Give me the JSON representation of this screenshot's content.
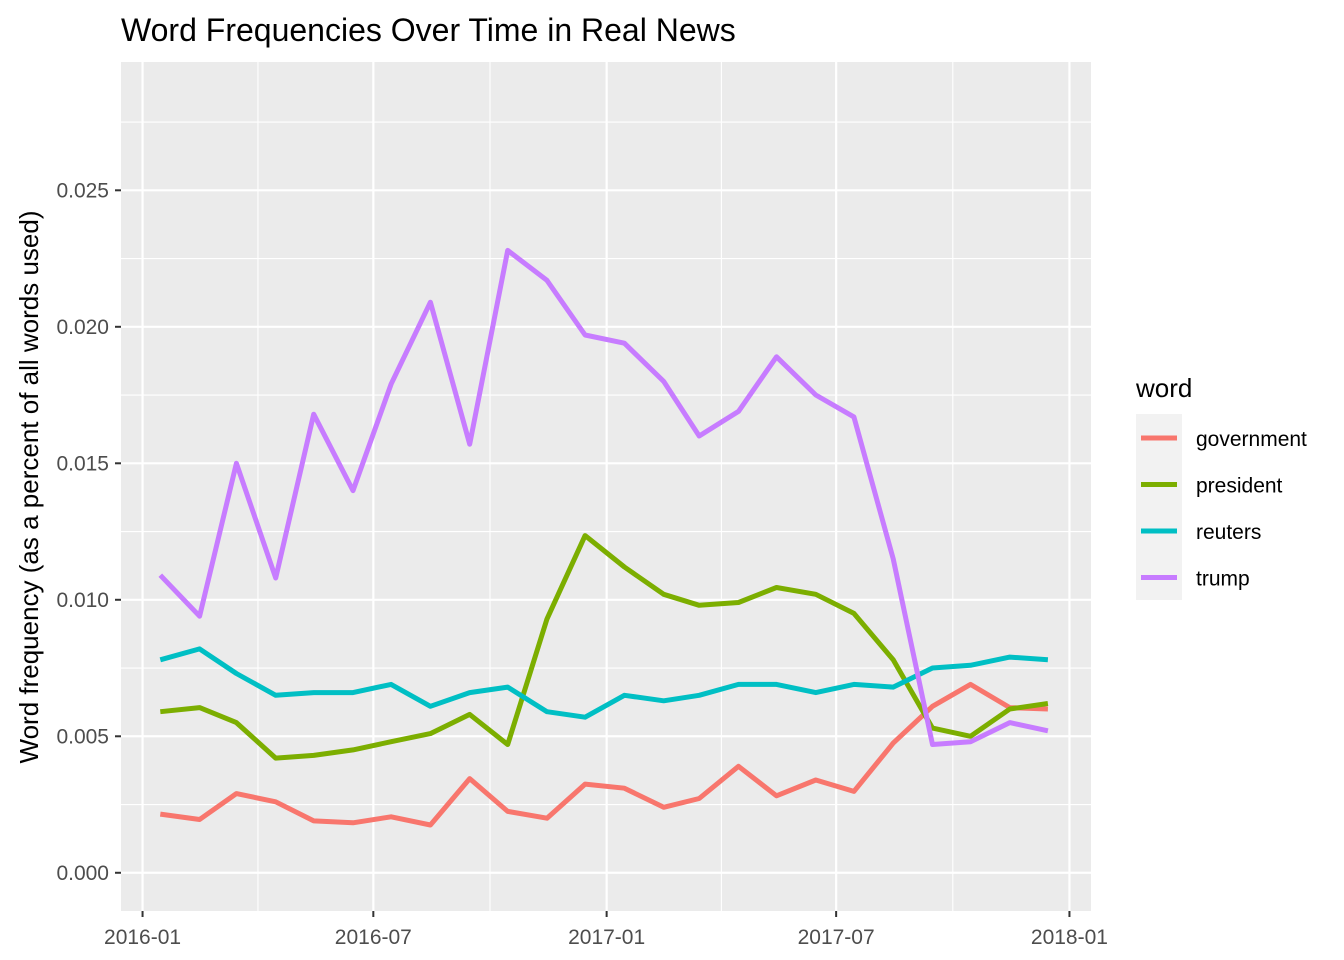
{
  "chart_data": {
    "type": "line",
    "title": "Word Frequencies Over Time in Real News",
    "xlabel": "",
    "ylabel": "Word frequency (as a percent of all words used)",
    "x": [
      "2016-01",
      "2016-02",
      "2016-03",
      "2016-04",
      "2016-05",
      "2016-06",
      "2016-07",
      "2016-08",
      "2016-09",
      "2016-10",
      "2016-11",
      "2016-12",
      "2017-01",
      "2017-02",
      "2017-03",
      "2017-04",
      "2017-05",
      "2017-06",
      "2017-07",
      "2017-08",
      "2017-09",
      "2017-10",
      "2017-11",
      "2017-12"
    ],
    "xlim": [
      "2015-12-15",
      "2018-01-18"
    ],
    "ylim": [
      -0.0014,
      0.0297
    ],
    "x_ticks": [
      "2016-01",
      "2016-07",
      "2017-01",
      "2017-07",
      "2018-01"
    ],
    "x_tick_dates": [
      "2016-01-01",
      "2016-07-01",
      "2017-01-01",
      "2017-07-01",
      "2018-01-01"
    ],
    "y_ticks": [
      "0.000",
      "0.005",
      "0.010",
      "0.015",
      "0.020",
      "0.025"
    ],
    "y_tick_values": [
      0.0,
      0.005,
      0.01,
      0.015,
      0.02,
      0.025
    ],
    "grid": true,
    "legend": {
      "title": "word",
      "position": "right"
    },
    "series": [
      {
        "name": "government",
        "color": "#F8766D",
        "values": [
          0.00215,
          0.00195,
          0.0029,
          0.0026,
          0.0019,
          0.00183,
          0.00205,
          0.00175,
          0.00345,
          0.00225,
          0.002,
          0.00325,
          0.0031,
          0.0024,
          0.00272,
          0.0039,
          0.00282,
          0.0034,
          0.00298,
          0.00475,
          0.0061,
          0.0069,
          0.00605,
          0.006
        ]
      },
      {
        "name": "president",
        "color": "#7CAE00",
        "values": [
          0.0059,
          0.00605,
          0.0055,
          0.0042,
          0.0043,
          0.0045,
          0.0048,
          0.0051,
          0.0058,
          0.0047,
          0.0093,
          0.01235,
          0.0112,
          0.0102,
          0.0098,
          0.0099,
          0.01045,
          0.0102,
          0.0095,
          0.0078,
          0.0053,
          0.005,
          0.006,
          0.0062
        ]
      },
      {
        "name": "reuters",
        "color": "#00BFC4",
        "values": [
          0.0078,
          0.0082,
          0.0073,
          0.0065,
          0.0066,
          0.0066,
          0.0069,
          0.0061,
          0.0066,
          0.0068,
          0.0059,
          0.0057,
          0.0065,
          0.0063,
          0.0065,
          0.0069,
          0.0069,
          0.0066,
          0.0069,
          0.0068,
          0.0075,
          0.0076,
          0.0079,
          0.0078
        ]
      },
      {
        "name": "trump",
        "color": "#C77CFF",
        "values": [
          0.0109,
          0.0094,
          0.015,
          0.0108,
          0.0168,
          0.014,
          0.0179,
          0.0209,
          0.0157,
          0.0228,
          0.0217,
          0.0197,
          0.0194,
          0.018,
          0.016,
          0.0169,
          0.0189,
          0.0175,
          0.0167,
          0.0115,
          0.0047,
          0.0048,
          0.0055,
          0.0052
        ]
      }
    ]
  }
}
